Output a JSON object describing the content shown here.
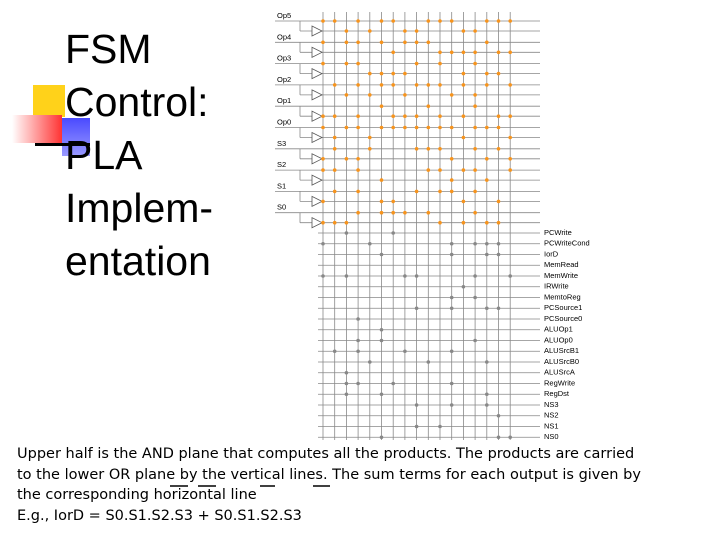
{
  "slide": {
    "title_lines": [
      "FSM",
      "Control:",
      "PLA",
      "Implem-",
      "entation"
    ],
    "inputs": [
      "Op5",
      "Op4",
      "Op3",
      "Op2",
      "Op1",
      "Op0",
      "S3",
      "S2",
      "S1",
      "S0"
    ],
    "outputs": [
      "PCWrite",
      "PCWriteCond",
      "IorD",
      "MemRead",
      "MemWrite",
      "IRWrite",
      "MemtoReg",
      "PCSource1",
      "PCSource0",
      "ALUOp1",
      "ALUOp0",
      "ALUSrcB1",
      "ALUSrcB0",
      "ALUSrcA",
      "RegWrite",
      "RegDst",
      "NS3",
      "NS2",
      "NS1",
      "NS0"
    ],
    "caption_lines": [
      "Upper half is the AND plane that computes all the products. The products are carried",
      "to the lower OR plane by the vertical lines. The sum terms for each output is given by",
      "the corresponding horizontal line",
      "E.g., IorD = S0.S1.S2.S3 + S0.S1.S2.S3"
    ]
  }
}
